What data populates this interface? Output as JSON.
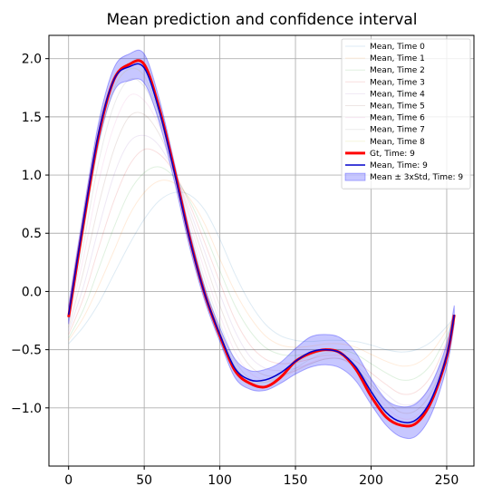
{
  "chart_data": {
    "type": "line",
    "title": "Mean prediction and confidence interval",
    "xlabel": "",
    "ylabel": "",
    "xlim": [
      -13,
      268
    ],
    "ylim": [
      -1.5,
      2.2
    ],
    "xticks": [
      0,
      50,
      100,
      150,
      200,
      250
    ],
    "xtick_labels": [
      "0",
      "50",
      "100",
      "150",
      "200",
      "250"
    ],
    "yticks": [
      -1.0,
      -0.5,
      0.0,
      0.5,
      1.0,
      1.5,
      2.0
    ],
    "ytick_labels": [
      "−1.0",
      "−0.5",
      "0.0",
      "0.5",
      "1.0",
      "1.5",
      "2.0"
    ],
    "grid": true,
    "legend_position": "top-right",
    "x": [
      0,
      10,
      20,
      30,
      40,
      50,
      60,
      70,
      80,
      90,
      100,
      110,
      120,
      130,
      140,
      150,
      160,
      170,
      180,
      190,
      200,
      210,
      220,
      230,
      240,
      250,
      255
    ],
    "series": [
      {
        "name": "Mean, Time 0",
        "color": "#1f77b4",
        "values": [
          -0.45,
          -0.3,
          -0.1,
          0.15,
          0.4,
          0.62,
          0.78,
          0.85,
          0.83,
          0.7,
          0.45,
          0.15,
          -0.1,
          -0.28,
          -0.38,
          -0.42,
          -0.43,
          -0.42,
          -0.42,
          -0.43,
          -0.46,
          -0.5,
          -0.52,
          -0.5,
          -0.43,
          -0.3,
          -0.22
        ]
      },
      {
        "name": "Mean, Time 1",
        "color": "#ff7f0e",
        "values": [
          -0.42,
          -0.22,
          0.05,
          0.35,
          0.65,
          0.85,
          0.95,
          0.93,
          0.8,
          0.58,
          0.28,
          0.0,
          -0.22,
          -0.38,
          -0.46,
          -0.48,
          -0.47,
          -0.45,
          -0.45,
          -0.48,
          -0.54,
          -0.6,
          -0.64,
          -0.62,
          -0.52,
          -0.33,
          -0.22
        ]
      },
      {
        "name": "Mean, Time 2",
        "color": "#2ca02c",
        "values": [
          -0.4,
          -0.15,
          0.2,
          0.55,
          0.85,
          1.02,
          1.07,
          0.98,
          0.78,
          0.5,
          0.18,
          -0.12,
          -0.34,
          -0.48,
          -0.54,
          -0.55,
          -0.53,
          -0.5,
          -0.5,
          -0.54,
          -0.62,
          -0.7,
          -0.76,
          -0.74,
          -0.62,
          -0.38,
          -0.22
        ]
      },
      {
        "name": "Mean, Time 3",
        "color": "#d62728",
        "values": [
          -0.37,
          -0.05,
          0.38,
          0.78,
          1.08,
          1.22,
          1.18,
          1.02,
          0.75,
          0.42,
          0.08,
          -0.24,
          -0.46,
          -0.58,
          -0.62,
          -0.61,
          -0.58,
          -0.55,
          -0.55,
          -0.6,
          -0.7,
          -0.8,
          -0.88,
          -0.86,
          -0.72,
          -0.43,
          -0.22
        ]
      },
      {
        "name": "Mean, Time 4",
        "color": "#9467bd",
        "values": [
          -0.34,
          0.05,
          0.55,
          1.0,
          1.28,
          1.34,
          1.25,
          1.02,
          0.7,
          0.34,
          -0.02,
          -0.34,
          -0.56,
          -0.66,
          -0.68,
          -0.66,
          -0.62,
          -0.58,
          -0.58,
          -0.64,
          -0.76,
          -0.88,
          -0.97,
          -0.95,
          -0.8,
          -0.48,
          -0.22
        ]
      },
      {
        "name": "Mean, Time 5",
        "color": "#8c564b",
        "values": [
          -0.31,
          0.18,
          0.75,
          1.22,
          1.5,
          1.52,
          1.35,
          1.05,
          0.65,
          0.26,
          -0.12,
          -0.44,
          -0.64,
          -0.72,
          -0.72,
          -0.68,
          -0.62,
          -0.58,
          -0.58,
          -0.66,
          -0.8,
          -0.94,
          -1.04,
          -1.02,
          -0.86,
          -0.52,
          -0.22
        ]
      },
      {
        "name": "Mean, Time 6",
        "color": "#e377c2",
        "values": [
          -0.28,
          0.3,
          0.95,
          1.42,
          1.68,
          1.64,
          1.42,
          1.06,
          0.6,
          0.18,
          -0.2,
          -0.52,
          -0.7,
          -0.76,
          -0.74,
          -0.68,
          -0.61,
          -0.57,
          -0.57,
          -0.66,
          -0.83,
          -0.99,
          -1.09,
          -1.07,
          -0.9,
          -0.55,
          -0.22
        ]
      },
      {
        "name": "Mean, Time 7",
        "color": "#7f7f7f",
        "values": [
          -0.25,
          0.42,
          1.12,
          1.6,
          1.82,
          1.76,
          1.48,
          1.05,
          0.55,
          0.1,
          -0.27,
          -0.59,
          -0.75,
          -0.78,
          -0.74,
          -0.66,
          -0.58,
          -0.53,
          -0.54,
          -0.64,
          -0.84,
          -1.03,
          -1.12,
          -1.1,
          -0.92,
          -0.56,
          -0.22
        ]
      },
      {
        "name": "Mean, Time 8",
        "color": "#bcbd22",
        "values": [
          -0.23,
          0.52,
          1.26,
          1.74,
          1.91,
          1.85,
          1.52,
          1.03,
          0.5,
          0.04,
          -0.33,
          -0.64,
          -0.77,
          -0.78,
          -0.72,
          -0.62,
          -0.55,
          -0.51,
          -0.53,
          -0.64,
          -0.86,
          -1.06,
          -1.14,
          -1.11,
          -0.93,
          -0.57,
          -0.22
        ]
      },
      {
        "name": "Gt, Time: 9",
        "color": "#ff0000",
        "values": [
          -0.22,
          0.6,
          1.35,
          1.82,
          1.95,
          1.95,
          1.57,
          1.04,
          0.46,
          -0.02,
          -0.38,
          -0.68,
          -0.79,
          -0.82,
          -0.74,
          -0.6,
          -0.53,
          -0.5,
          -0.53,
          -0.67,
          -0.9,
          -1.08,
          -1.15,
          -1.13,
          -0.94,
          -0.56,
          -0.2
        ]
      },
      {
        "name": "Mean, Time: 9",
        "color": "#0000cc",
        "values": [
          -0.2,
          0.62,
          1.37,
          1.82,
          1.93,
          1.92,
          1.55,
          1.02,
          0.45,
          -0.02,
          -0.37,
          -0.66,
          -0.76,
          -0.76,
          -0.7,
          -0.6,
          -0.52,
          -0.5,
          -0.53,
          -0.65,
          -0.86,
          -1.04,
          -1.12,
          -1.1,
          -0.92,
          -0.55,
          -0.2
        ]
      }
    ],
    "band": {
      "name": "Mean ± 3xStd, Time: 9",
      "color": "#0000ff",
      "lower": [
        -0.28,
        0.54,
        1.28,
        1.72,
        1.81,
        1.79,
        1.45,
        0.94,
        0.38,
        -0.08,
        -0.43,
        -0.74,
        -0.84,
        -0.85,
        -0.79,
        -0.71,
        -0.65,
        -0.63,
        -0.66,
        -0.77,
        -0.97,
        -1.15,
        -1.25,
        -1.24,
        -1.05,
        -0.65,
        -0.28
      ],
      "upper": [
        -0.12,
        0.7,
        1.46,
        1.92,
        2.04,
        2.04,
        1.65,
        1.1,
        0.52,
        0.04,
        -0.31,
        -0.58,
        -0.68,
        -0.67,
        -0.61,
        -0.49,
        -0.39,
        -0.37,
        -0.4,
        -0.53,
        -0.75,
        -0.93,
        -0.99,
        -0.96,
        -0.79,
        -0.45,
        -0.12
      ]
    }
  }
}
